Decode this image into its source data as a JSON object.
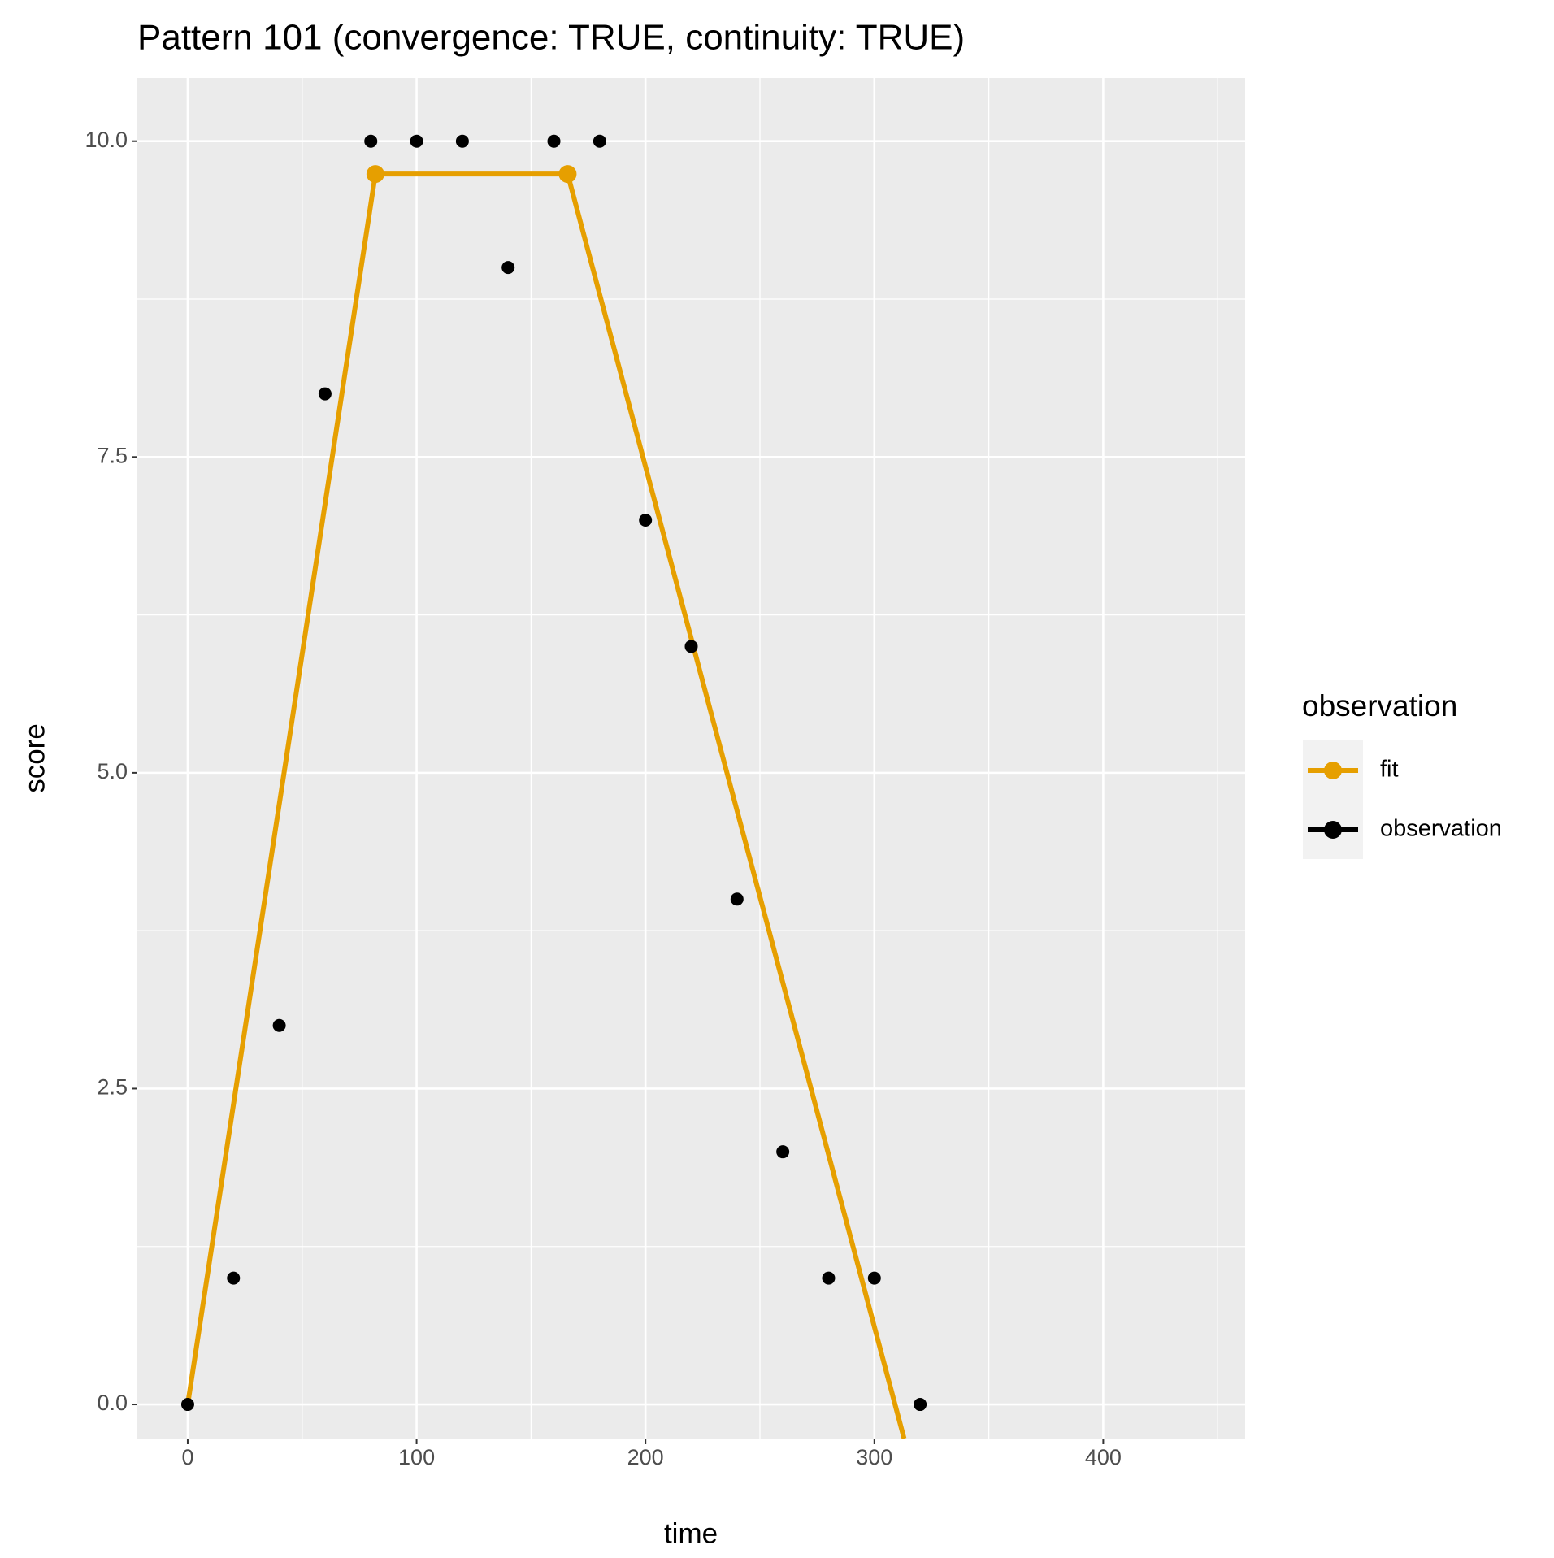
{
  "chart_data": {
    "type": "line",
    "title": "Pattern 101 (convergence: TRUE, continuity: TRUE)",
    "x_label": "time",
    "y_label": "score",
    "xlim": [
      -22,
      462
    ],
    "ylim": [
      -0.27,
      10.5
    ],
    "xticks": [
      0,
      100,
      200,
      300,
      400
    ],
    "yticks": [
      {
        "value": 0,
        "label": "0.0"
      },
      {
        "value": 2.5,
        "label": "2.5"
      },
      {
        "value": 5,
        "label": "5.0"
      },
      {
        "value": 7.5,
        "label": "7.5"
      },
      {
        "value": 10,
        "label": "10.0"
      }
    ],
    "grid": true,
    "legend_title": "observation",
    "series": [
      {
        "name": "fit",
        "color": "#E69F00",
        "x": [
          0,
          82,
          166,
          313
        ],
        "values": [
          0,
          9.74,
          9.74,
          -0.27
        ],
        "breakpoints": {
          "x": [
            82,
            166
          ],
          "values": [
            9.74,
            9.74
          ]
        }
      },
      {
        "name": "observation",
        "color": "#000000",
        "x": [
          0,
          20,
          40,
          60,
          80,
          100,
          120,
          140,
          160,
          180,
          200,
          220,
          240,
          260,
          280,
          300,
          320
        ],
        "values": [
          0,
          1,
          3,
          8,
          10,
          10,
          10,
          9,
          10,
          10,
          7,
          6,
          4,
          2,
          1,
          1,
          0
        ]
      }
    ]
  }
}
